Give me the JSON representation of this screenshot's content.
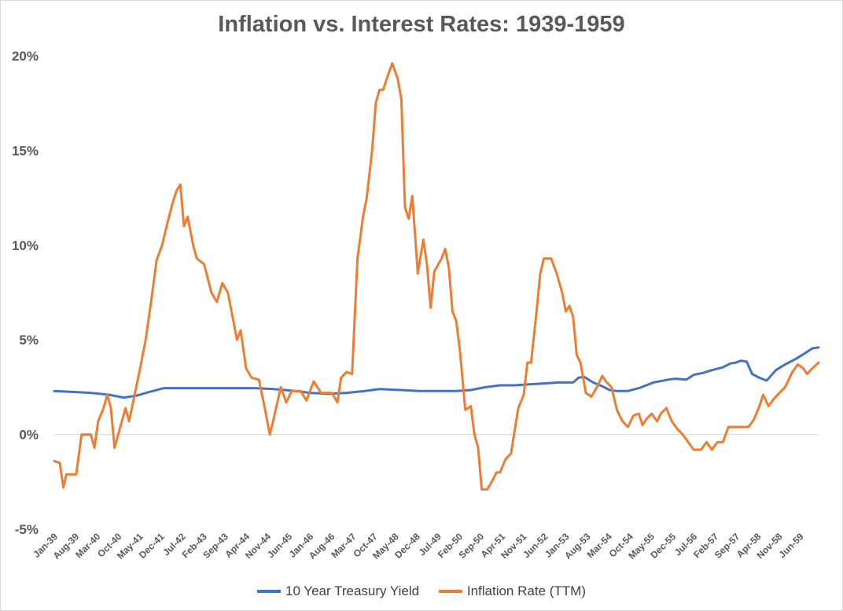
{
  "chart_data": {
    "type": "line",
    "title": "Inflation vs. Interest Rates: 1939-1959",
    "xlabel": "",
    "ylabel": "",
    "ylim": [
      -5,
      20
    ],
    "y_ticks": [
      "20%",
      "15%",
      "10%",
      "5%",
      "0%",
      "-5%"
    ],
    "y_tick_values": [
      20,
      15,
      10,
      5,
      0,
      -5
    ],
    "x_range": [
      1939.0,
      1959.92
    ],
    "x_tick_labels": [
      "Jan-39",
      "Aug-39",
      "Mar-40",
      "Oct-40",
      "May-41",
      "Dec-41",
      "Jul-42",
      "Feb-43",
      "Sep-43",
      "Apr-44",
      "Nov-44",
      "Jun-45",
      "Jan-46",
      "Aug-46",
      "Mar-47",
      "Oct-47",
      "May-48",
      "Dec-48",
      "Jul-49",
      "Feb-50",
      "Sep-50",
      "Apr-51",
      "Nov-51",
      "Jun-52",
      "Jan-53",
      "Aug-53",
      "Mar-54",
      "Oct-54",
      "May-55",
      "Dec-55",
      "Jul-56",
      "Feb-57",
      "Sep-57",
      "Apr-58",
      "Nov-58",
      "Jun-59"
    ],
    "legend_position": "bottom",
    "series": [
      {
        "name": "10 Year Treasury Yield",
        "color": "#4472c4",
        "points": [
          [
            1939.0,
            2.3
          ],
          [
            1939.5,
            2.25
          ],
          [
            1940.0,
            2.2
          ],
          [
            1940.5,
            2.1
          ],
          [
            1940.9,
            1.95
          ],
          [
            1941.25,
            2.05
          ],
          [
            1941.6,
            2.25
          ],
          [
            1942.0,
            2.45
          ],
          [
            1943.0,
            2.45
          ],
          [
            1944.0,
            2.45
          ],
          [
            1944.5,
            2.45
          ],
          [
            1945.0,
            2.4
          ],
          [
            1945.6,
            2.3
          ],
          [
            1946.0,
            2.2
          ],
          [
            1946.5,
            2.15
          ],
          [
            1947.0,
            2.2
          ],
          [
            1947.5,
            2.3
          ],
          [
            1947.9,
            2.4
          ],
          [
            1948.5,
            2.35
          ],
          [
            1949.0,
            2.3
          ],
          [
            1950.0,
            2.3
          ],
          [
            1950.4,
            2.35
          ],
          [
            1950.8,
            2.5
          ],
          [
            1951.2,
            2.6
          ],
          [
            1951.6,
            2.6
          ],
          [
            1952.0,
            2.65
          ],
          [
            1952.4,
            2.7
          ],
          [
            1952.8,
            2.75
          ],
          [
            1953.2,
            2.75
          ],
          [
            1953.35,
            3.0
          ],
          [
            1953.5,
            3.05
          ],
          [
            1953.75,
            2.75
          ],
          [
            1954.0,
            2.55
          ],
          [
            1954.2,
            2.35
          ],
          [
            1954.4,
            2.3
          ],
          [
            1954.7,
            2.3
          ],
          [
            1955.0,
            2.45
          ],
          [
            1955.4,
            2.75
          ],
          [
            1955.8,
            2.9
          ],
          [
            1956.0,
            2.95
          ],
          [
            1956.3,
            2.9
          ],
          [
            1956.5,
            3.15
          ],
          [
            1956.75,
            3.25
          ],
          [
            1957.0,
            3.4
          ],
          [
            1957.3,
            3.55
          ],
          [
            1957.5,
            3.75
          ],
          [
            1957.65,
            3.8
          ],
          [
            1957.8,
            3.9
          ],
          [
            1957.95,
            3.85
          ],
          [
            1958.1,
            3.2
          ],
          [
            1958.3,
            3.0
          ],
          [
            1958.5,
            2.85
          ],
          [
            1958.75,
            3.4
          ],
          [
            1959.0,
            3.7
          ],
          [
            1959.3,
            4.0
          ],
          [
            1959.55,
            4.3
          ],
          [
            1959.75,
            4.55
          ],
          [
            1959.92,
            4.6
          ]
        ]
      },
      {
        "name": "Inflation Rate (TTM)",
        "color": "#ed7d31",
        "points": [
          [
            1939.0,
            -1.4
          ],
          [
            1939.15,
            -1.5
          ],
          [
            1939.25,
            -2.8
          ],
          [
            1939.33,
            -2.1
          ],
          [
            1939.6,
            -2.1
          ],
          [
            1939.75,
            0.0
          ],
          [
            1940.0,
            0.0
          ],
          [
            1940.1,
            -0.7
          ],
          [
            1940.2,
            0.7
          ],
          [
            1940.35,
            1.4
          ],
          [
            1940.45,
            2.1
          ],
          [
            1940.55,
            1.4
          ],
          [
            1940.65,
            -0.7
          ],
          [
            1940.75,
            0.0
          ],
          [
            1940.85,
            0.7
          ],
          [
            1940.95,
            1.4
          ],
          [
            1941.05,
            0.7
          ],
          [
            1941.2,
            2.1
          ],
          [
            1941.35,
            3.5
          ],
          [
            1941.5,
            5.0
          ],
          [
            1941.65,
            7.0
          ],
          [
            1941.8,
            9.2
          ],
          [
            1941.95,
            10.0
          ],
          [
            1942.1,
            11.2
          ],
          [
            1942.25,
            12.3
          ],
          [
            1942.35,
            12.9
          ],
          [
            1942.45,
            13.2
          ],
          [
            1942.55,
            11.0
          ],
          [
            1942.65,
            11.5
          ],
          [
            1942.8,
            10.0
          ],
          [
            1942.9,
            9.3
          ],
          [
            1943.1,
            9.0
          ],
          [
            1943.3,
            7.5
          ],
          [
            1943.45,
            7.0
          ],
          [
            1943.6,
            8.0
          ],
          [
            1943.75,
            7.5
          ],
          [
            1943.9,
            6.0
          ],
          [
            1944.0,
            5.0
          ],
          [
            1944.1,
            5.5
          ],
          [
            1944.25,
            3.5
          ],
          [
            1944.4,
            3.0
          ],
          [
            1944.6,
            2.9
          ],
          [
            1944.75,
            1.5
          ],
          [
            1944.9,
            0.0
          ],
          [
            1945.0,
            0.8
          ],
          [
            1945.2,
            2.5
          ],
          [
            1945.35,
            1.7
          ],
          [
            1945.5,
            2.3
          ],
          [
            1945.75,
            2.3
          ],
          [
            1945.9,
            1.8
          ],
          [
            1946.1,
            2.8
          ],
          [
            1946.3,
            2.2
          ],
          [
            1946.6,
            2.2
          ],
          [
            1946.75,
            1.7
          ],
          [
            1946.85,
            3.0
          ],
          [
            1947.0,
            3.3
          ],
          [
            1947.15,
            3.2
          ],
          [
            1947.3,
            9.3
          ],
          [
            1947.45,
            11.5
          ],
          [
            1947.55,
            12.5
          ],
          [
            1947.7,
            15.0
          ],
          [
            1947.8,
            17.5
          ],
          [
            1947.9,
            18.2
          ],
          [
            1948.0,
            18.2
          ],
          [
            1948.1,
            18.8
          ],
          [
            1948.25,
            19.6
          ],
          [
            1948.4,
            18.8
          ],
          [
            1948.5,
            17.7
          ],
          [
            1948.6,
            12.0
          ],
          [
            1948.7,
            11.4
          ],
          [
            1948.8,
            12.6
          ],
          [
            1948.95,
            8.5
          ],
          [
            1949.1,
            10.3
          ],
          [
            1949.2,
            9.0
          ],
          [
            1949.3,
            6.7
          ],
          [
            1949.4,
            8.6
          ],
          [
            1949.6,
            9.3
          ],
          [
            1949.7,
            9.8
          ],
          [
            1949.8,
            8.8
          ],
          [
            1949.9,
            6.5
          ],
          [
            1950.0,
            6.0
          ],
          [
            1950.1,
            4.5
          ],
          [
            1950.25,
            1.3
          ],
          [
            1950.4,
            1.5
          ],
          [
            1950.5,
            0.0
          ],
          [
            1950.6,
            -0.7
          ],
          [
            1950.7,
            -2.9
          ],
          [
            1950.85,
            -2.9
          ],
          [
            1951.0,
            -2.4
          ],
          [
            1951.1,
            -2.0
          ],
          [
            1951.2,
            -2.0
          ],
          [
            1951.35,
            -1.3
          ],
          [
            1951.5,
            -1.0
          ],
          [
            1951.7,
            1.4
          ],
          [
            1951.85,
            2.1
          ],
          [
            1951.95,
            3.8
          ],
          [
            1952.05,
            3.8
          ],
          [
            1952.2,
            6.5
          ],
          [
            1952.3,
            8.5
          ],
          [
            1952.4,
            9.3
          ],
          [
            1952.6,
            9.3
          ],
          [
            1952.75,
            8.5
          ],
          [
            1952.9,
            7.5
          ],
          [
            1953.0,
            6.5
          ],
          [
            1953.1,
            6.8
          ],
          [
            1953.2,
            6.2
          ],
          [
            1953.3,
            4.2
          ],
          [
            1953.4,
            3.8
          ],
          [
            1953.55,
            2.2
          ],
          [
            1953.7,
            2.0
          ],
          [
            1953.85,
            2.5
          ],
          [
            1954.0,
            3.1
          ],
          [
            1954.1,
            2.8
          ],
          [
            1954.25,
            2.5
          ],
          [
            1954.4,
            1.3
          ],
          [
            1954.55,
            0.7
          ],
          [
            1954.7,
            0.4
          ],
          [
            1954.85,
            1.0
          ],
          [
            1955.0,
            1.1
          ],
          [
            1955.1,
            0.5
          ],
          [
            1955.2,
            0.8
          ],
          [
            1955.35,
            1.1
          ],
          [
            1955.5,
            0.7
          ],
          [
            1955.6,
            1.1
          ],
          [
            1955.75,
            1.4
          ],
          [
            1955.9,
            0.7
          ],
          [
            1956.05,
            0.3
          ],
          [
            1956.2,
            0.0
          ],
          [
            1956.35,
            -0.4
          ],
          [
            1956.5,
            -0.8
          ],
          [
            1956.7,
            -0.8
          ],
          [
            1956.85,
            -0.4
          ],
          [
            1957.0,
            -0.8
          ],
          [
            1957.15,
            -0.4
          ],
          [
            1957.3,
            -0.4
          ],
          [
            1957.45,
            0.4
          ],
          [
            1958.0,
            0.4
          ],
          [
            1958.15,
            0.8
          ],
          [
            1958.3,
            1.5
          ],
          [
            1958.4,
            2.1
          ],
          [
            1958.55,
            1.5
          ],
          [
            1958.7,
            1.9
          ],
          [
            1958.85,
            2.2
          ],
          [
            1959.0,
            2.5
          ],
          [
            1959.1,
            2.9
          ],
          [
            1959.2,
            3.3
          ],
          [
            1959.35,
            3.7
          ],
          [
            1959.5,
            3.5
          ],
          [
            1959.6,
            3.2
          ],
          [
            1959.75,
            3.5
          ],
          [
            1959.92,
            3.8
          ]
        ]
      }
    ]
  },
  "legend": {
    "items": [
      {
        "label": "10 Year Treasury Yield",
        "color": "#4472c4"
      },
      {
        "label": "Inflation Rate (TTM)",
        "color": "#ed7d31"
      }
    ]
  }
}
